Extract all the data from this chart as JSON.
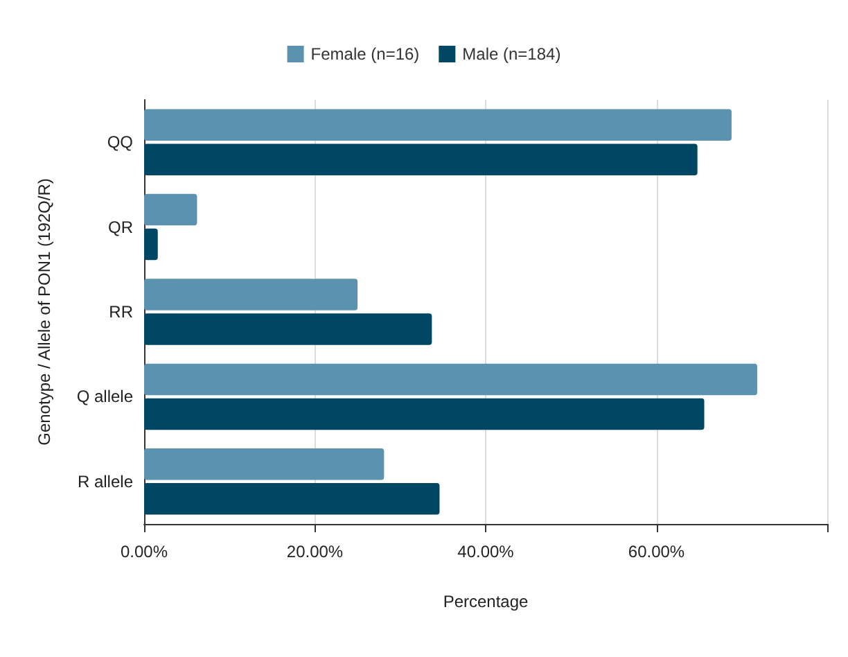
{
  "chart_data": {
    "type": "bar",
    "orientation": "horizontal",
    "xlabel": "Percentage",
    "ylabel": "Genotype / Allele of PON1 (192Q/R)",
    "categories": [
      "QQ",
      "QR",
      "RR",
      "Q allele",
      "R allele"
    ],
    "series": [
      {
        "name": "Female (n=16)",
        "color": "#5b92b0",
        "values": [
          68.8,
          6.2,
          25.0,
          71.8,
          28.1
        ]
      },
      {
        "name": "Male (n=184)",
        "color": "#004764",
        "values": [
          64.8,
          1.6,
          33.7,
          65.6,
          34.6
        ]
      }
    ],
    "xlim": [
      0,
      80
    ],
    "xticks": [
      {
        "value": 0,
        "label": "0.00%"
      },
      {
        "value": 20,
        "label": "20.00%"
      },
      {
        "value": 40,
        "label": "40.00%"
      },
      {
        "value": 60,
        "label": "60.00%"
      },
      {
        "value": 80,
        "label": null
      }
    ],
    "grid": "x",
    "legend": "top"
  }
}
